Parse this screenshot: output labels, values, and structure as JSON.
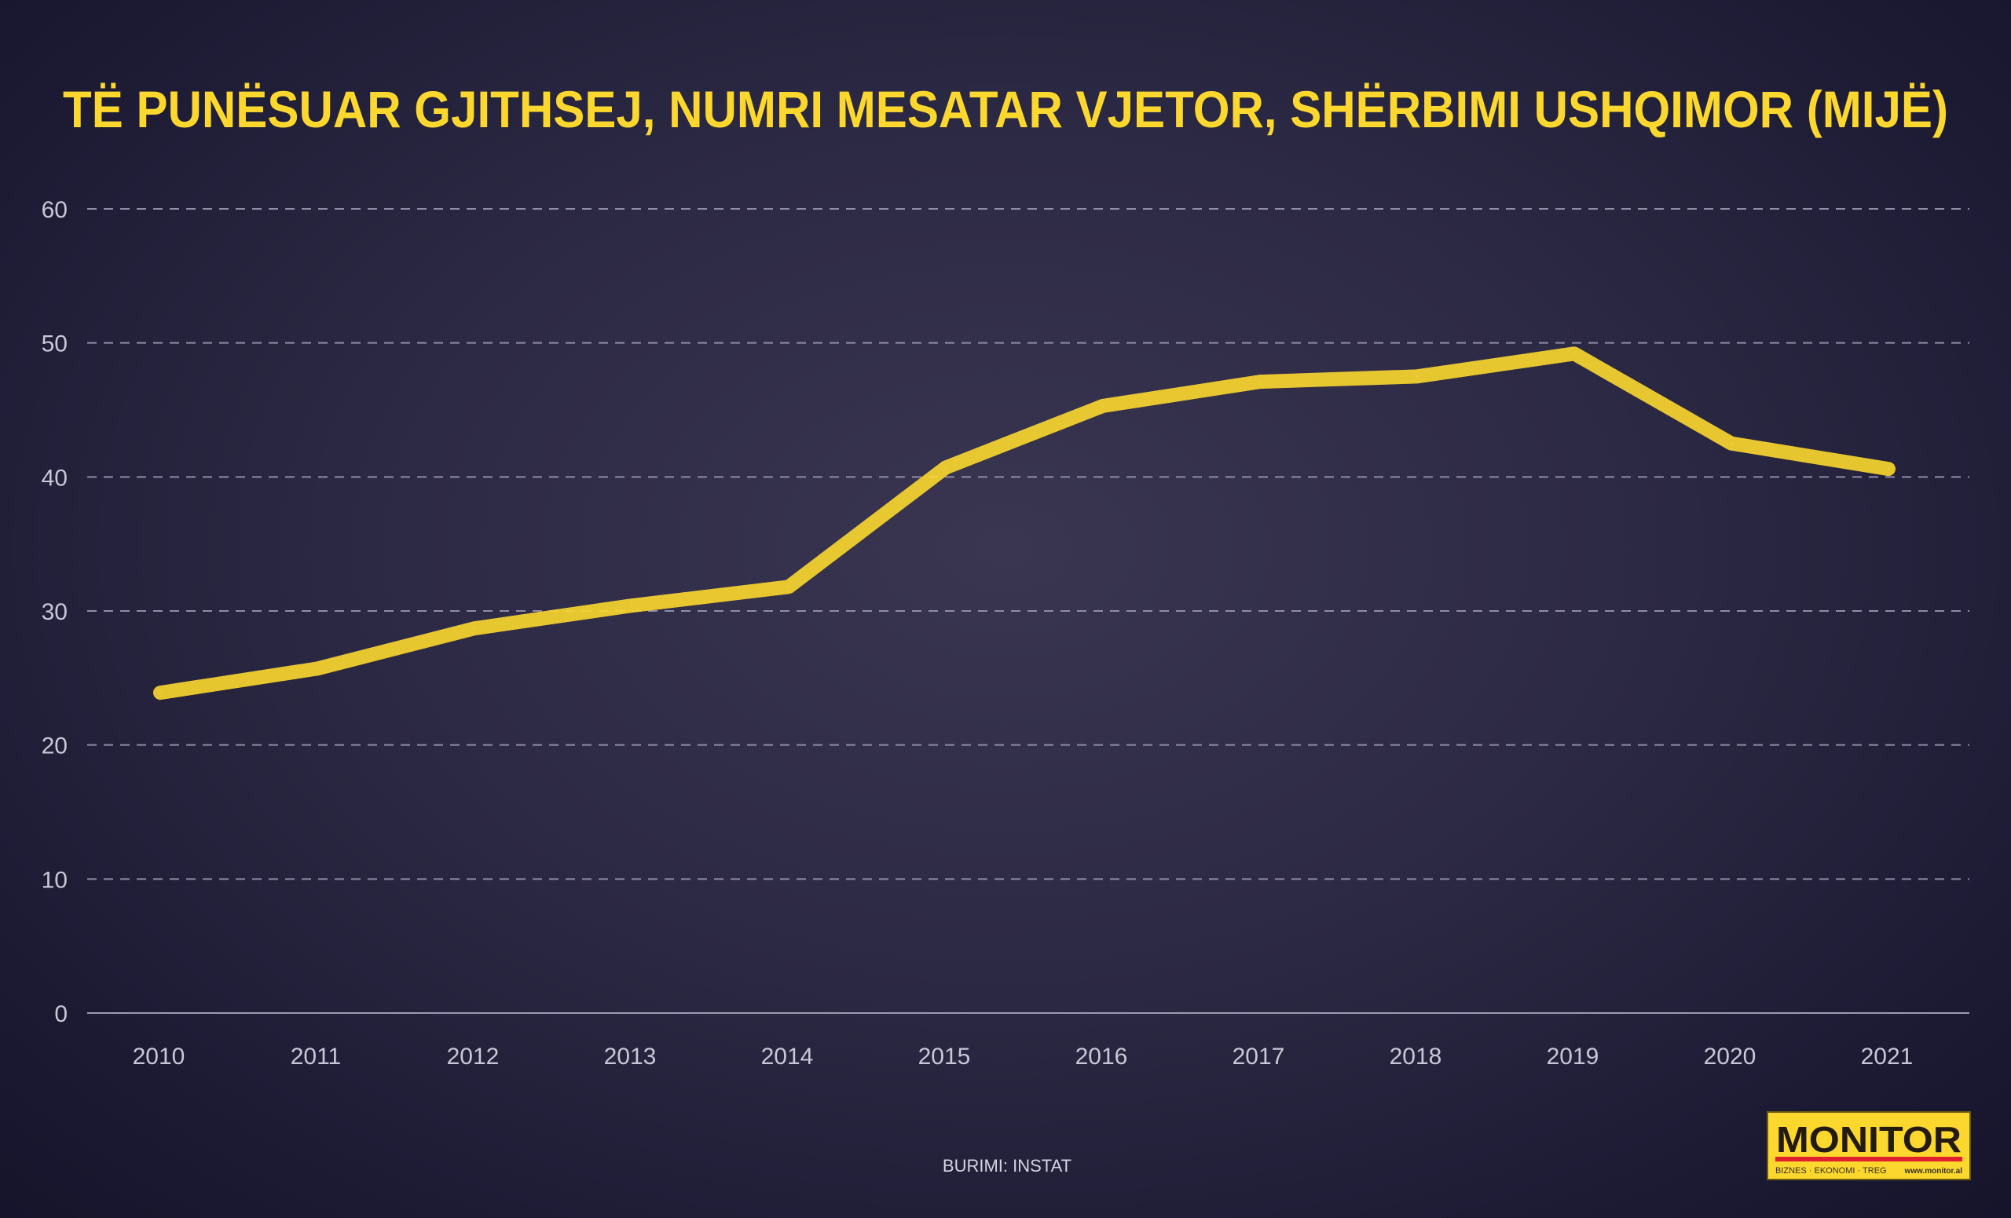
{
  "chart_data": {
    "type": "line",
    "title": "TË PUNËSUAR GJITHSEJ, NUMRI MESATAR VJETOR, SHËRBIMI USHQIMOR (MIJË)",
    "xlabel": "",
    "ylabel": "",
    "categories": [
      "2010",
      "2011",
      "2012",
      "2013",
      "2014",
      "2015",
      "2016",
      "2017",
      "2018",
      "2019",
      "2020",
      "2021"
    ],
    "values": [
      23.9,
      25.7,
      28.7,
      30.4,
      31.8,
      40.7,
      45.3,
      47.1,
      47.5,
      49.2,
      42.5,
      40.6
    ],
    "ylim": [
      0,
      60
    ],
    "yticks": [
      "0",
      "10",
      "20",
      "30",
      "40",
      "50",
      "60"
    ],
    "grid": "horizontal dashed",
    "legend": "none",
    "line_color": "#fcd82e"
  },
  "source": "BURIMI: INSTAT",
  "logo": {
    "name": "MONITOR",
    "tagline": "BIZNES · EKONOMI · TREG",
    "url": "www.monitor.al"
  },
  "colors": {
    "background": "#2c2944",
    "accent": "#fcd82e",
    "logo_red": "#e0202e"
  }
}
